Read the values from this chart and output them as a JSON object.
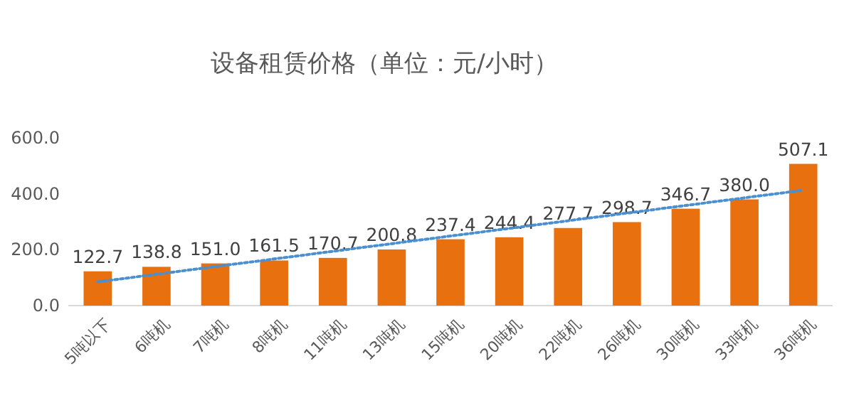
{
  "chart_data": {
    "type": "bar",
    "title": "设备租赁价格（单位：元/小时）",
    "categories": [
      "5吨以下",
      "6吨机",
      "7吨机",
      "8吨机",
      "11吨机",
      "13吨机",
      "15吨机",
      "20吨机",
      "22吨机",
      "26吨机",
      "30吨机",
      "33吨机",
      "36吨机"
    ],
    "series": [
      {
        "color": "#e8700f",
        "values": [
          122.7,
          138.8,
          151.0,
          161.5,
          170.7,
          200.8,
          237.4,
          244.4,
          277.7,
          298.7,
          346.7,
          380.0,
          507.1
        ],
        "value_labels": [
          "122.7",
          "138.8",
          "151.0",
          "161.5",
          "170.7",
          "200.8",
          "237.4",
          "244.4",
          "277.7",
          "298.7",
          "346.7",
          "380.0",
          "507.1"
        ]
      },
      {
        "type": "line",
        "color": "#4a90d0",
        "line_style": "dotted",
        "x": [
          "5吨以下",
          "36吨机"
        ],
        "values": [
          85,
          413
        ]
      }
    ],
    "ylim": [
      0,
      600
    ],
    "yticks": [
      {
        "value": 0,
        "label": "0.0"
      },
      {
        "value": 200,
        "label": "200.0"
      },
      {
        "value": 400,
        "label": "400.0"
      },
      {
        "value": 600,
        "label": "600.0"
      }
    ],
    "grid": false
  }
}
